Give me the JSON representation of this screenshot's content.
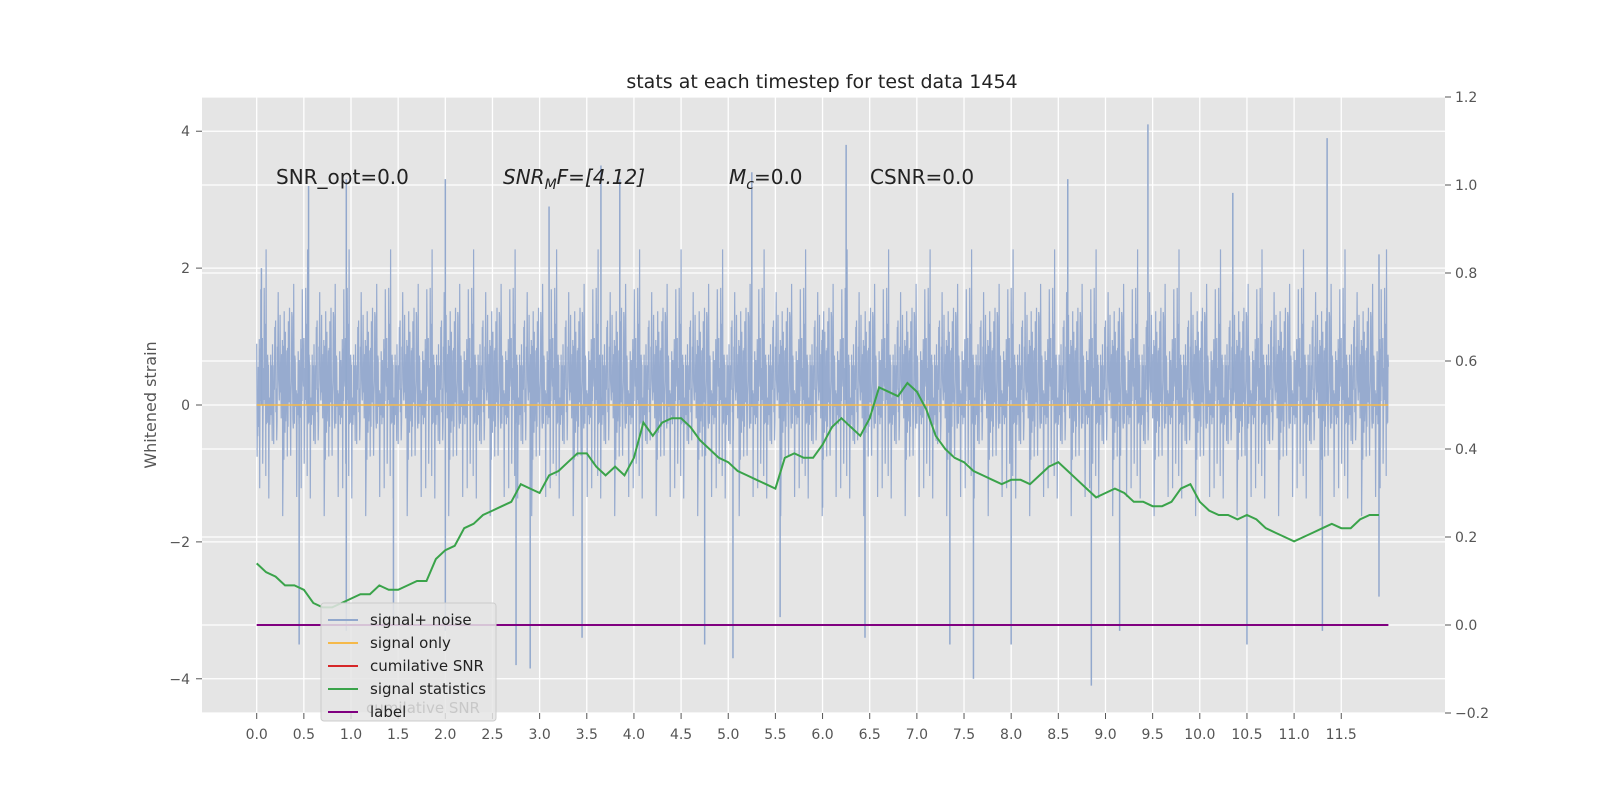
{
  "chart_data": {
    "type": "line",
    "title": "stats at each timestep for test data 1454",
    "ylabel": "Whitened strain",
    "xlabel": "",
    "xlim": [
      -0.58,
      12.6
    ],
    "ylim": [
      -4.5,
      4.5
    ],
    "y2lim": [
      -0.2,
      1.2
    ],
    "x_ticks": [
      "0.0",
      "0.5",
      "1.0",
      "1.5",
      "2.0",
      "2.5",
      "3.0",
      "3.5",
      "4.0",
      "4.5",
      "5.0",
      "5.5",
      "6.0",
      "6.5",
      "7.0",
      "7.5",
      "8.0",
      "8.5",
      "9.0",
      "9.5",
      "10.0",
      "10.5",
      "11.0",
      "11.5"
    ],
    "y_ticks": [
      "−4",
      "−2",
      "0",
      "2",
      "4"
    ],
    "y2_ticks": [
      "−0.2",
      "0.0",
      "0.2",
      "0.4",
      "0.6",
      "0.8",
      "1.0",
      "1.2"
    ],
    "grid": true,
    "annotations": {
      "snr_opt": "SNR_opt=0.0",
      "snr_mf_sym": "SNR",
      "snr_mf_sub": "M",
      "snr_mf_rest": "F=[4.12]",
      "mc_sym": "M",
      "mc_sub": "c",
      "mc_rest": "=0.0",
      "csnr": "CSNR=0.0"
    },
    "legend": {
      "placement": "lower-left",
      "entries": [
        "signal+ noise",
        "signal only",
        "cumilative SNR",
        "signal statistics",
        "label"
      ],
      "overlap_text": "cumilative SNR"
    },
    "colors": {
      "signal_noise": "#92a8cd",
      "signal_only": "#f5b94a",
      "cumulative_snr": "#d62728",
      "signal_statistics": "#3aa34a",
      "label": "#800080",
      "background": "#e5e5e5",
      "grid": "#ffffff"
    },
    "series": [
      {
        "name": "signal+ noise",
        "axis": "left",
        "x_range": [
          0,
          12.0
        ],
        "band_typical": [
          -2.0,
          2.0
        ],
        "peaks_high": [
          [
            0.05,
            2.0
          ],
          [
            0.55,
            3.2
          ],
          [
            0.95,
            3.3
          ],
          [
            2.0,
            3.3
          ],
          [
            3.1,
            2.9
          ],
          [
            3.65,
            3.5
          ],
          [
            3.85,
            3.3
          ],
          [
            5.25,
            3.4
          ],
          [
            6.0,
            1.1
          ],
          [
            6.25,
            3.8
          ],
          [
            8.6,
            3.3
          ],
          [
            9.45,
            4.1
          ],
          [
            10.35,
            3.1
          ],
          [
            11.35,
            3.9
          ],
          [
            11.9,
            2.2
          ]
        ],
        "peaks_low": [
          [
            0.45,
            -3.5
          ],
          [
            0.95,
            -3.3
          ],
          [
            1.45,
            -3.1
          ],
          [
            2.0,
            -3.3
          ],
          [
            2.75,
            -3.8
          ],
          [
            2.9,
            -3.85
          ],
          [
            3.45,
            -3.4
          ],
          [
            4.75,
            -3.5
          ],
          [
            5.05,
            -3.7
          ],
          [
            5.55,
            -3.1
          ],
          [
            6.0,
            -1.5
          ],
          [
            6.45,
            -3.4
          ],
          [
            7.35,
            -3.5
          ],
          [
            7.6,
            -4.0
          ],
          [
            8.0,
            -3.5
          ],
          [
            8.85,
            -4.1
          ],
          [
            9.15,
            -3.3
          ],
          [
            10.5,
            -3.5
          ],
          [
            11.3,
            -3.3
          ],
          [
            11.9,
            -2.8
          ]
        ]
      },
      {
        "name": "signal only",
        "axis": "left",
        "x": [
          0,
          12.0
        ],
        "values": [
          0,
          0
        ]
      },
      {
        "name": "signal statistics",
        "axis": "right",
        "x": [
          0.0,
          0.1,
          0.2,
          0.3,
          0.4,
          0.5,
          0.6,
          0.7,
          0.8,
          0.9,
          1.0,
          1.1,
          1.2,
          1.3,
          1.4,
          1.5,
          1.6,
          1.7,
          1.8,
          1.9,
          2.0,
          2.1,
          2.2,
          2.3,
          2.4,
          2.5,
          2.6,
          2.7,
          2.8,
          2.9,
          3.0,
          3.1,
          3.2,
          3.3,
          3.4,
          3.5,
          3.6,
          3.7,
          3.8,
          3.9,
          4.0,
          4.1,
          4.2,
          4.3,
          4.4,
          4.5,
          4.6,
          4.7,
          4.8,
          4.9,
          5.0,
          5.1,
          5.2,
          5.3,
          5.4,
          5.5,
          5.6,
          5.7,
          5.8,
          5.9,
          6.0,
          6.1,
          6.2,
          6.3,
          6.4,
          6.5,
          6.6,
          6.7,
          6.8,
          6.9,
          7.0,
          7.1,
          7.2,
          7.3,
          7.4,
          7.5,
          7.6,
          7.7,
          7.8,
          7.9,
          8.0,
          8.1,
          8.2,
          8.3,
          8.4,
          8.5,
          8.6,
          8.7,
          8.8,
          8.9,
          9.0,
          9.1,
          9.2,
          9.3,
          9.4,
          9.5,
          9.6,
          9.7,
          9.8,
          9.9,
          10.0,
          10.1,
          10.2,
          10.3,
          10.4,
          10.5,
          10.6,
          10.7,
          10.8,
          10.9,
          11.0,
          11.1,
          11.2,
          11.3,
          11.4,
          11.5,
          11.6,
          11.7,
          11.8,
          11.9
        ],
        "values": [
          0.14,
          0.12,
          0.11,
          0.09,
          0.09,
          0.08,
          0.05,
          0.04,
          0.04,
          0.05,
          0.06,
          0.07,
          0.07,
          0.09,
          0.08,
          0.08,
          0.09,
          0.1,
          0.1,
          0.15,
          0.17,
          0.18,
          0.22,
          0.23,
          0.25,
          0.26,
          0.27,
          0.28,
          0.32,
          0.31,
          0.3,
          0.34,
          0.35,
          0.37,
          0.39,
          0.39,
          0.36,
          0.34,
          0.36,
          0.34,
          0.38,
          0.46,
          0.43,
          0.46,
          0.47,
          0.47,
          0.45,
          0.42,
          0.4,
          0.38,
          0.37,
          0.35,
          0.34,
          0.33,
          0.32,
          0.31,
          0.38,
          0.39,
          0.38,
          0.38,
          0.41,
          0.45,
          0.47,
          0.45,
          0.43,
          0.47,
          0.54,
          0.53,
          0.52,
          0.55,
          0.53,
          0.49,
          0.43,
          0.4,
          0.38,
          0.37,
          0.35,
          0.34,
          0.33,
          0.32,
          0.33,
          0.33,
          0.32,
          0.34,
          0.36,
          0.37,
          0.35,
          0.33,
          0.31,
          0.29,
          0.3,
          0.31,
          0.3,
          0.28,
          0.28,
          0.27,
          0.27,
          0.28,
          0.31,
          0.32,
          0.28,
          0.26,
          0.25,
          0.25,
          0.24,
          0.25,
          0.24,
          0.22,
          0.21,
          0.2,
          0.19,
          0.2,
          0.21,
          0.22,
          0.23,
          0.22,
          0.22,
          0.24,
          0.25,
          0.25
        ],
        "values_note_skip": false
      },
      {
        "name": "label",
        "axis": "right",
        "x": [
          0,
          12.0
        ],
        "values": [
          0,
          0
        ]
      }
    ]
  }
}
